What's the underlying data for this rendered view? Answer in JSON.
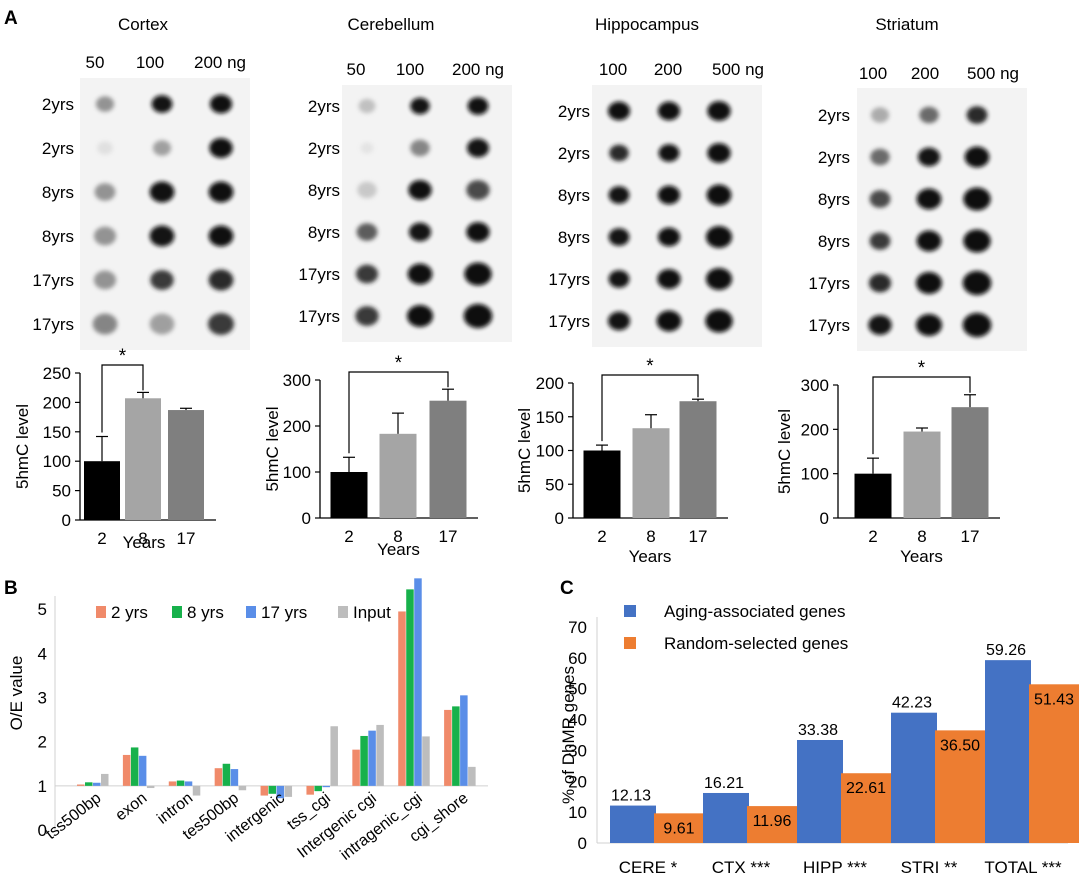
{
  "panel_labels": {
    "a": "A",
    "b": "B",
    "c": "C"
  },
  "blots": [
    {
      "title": "Cortex",
      "header": {
        "c1": "50",
        "c2": "100",
        "c3": "200 ng"
      },
      "rows": [
        {
          "label": "2yrs",
          "intensity": [
            0.55,
            0.95,
            0.98
          ],
          "spread": [
            0.7,
            0.8,
            0.85
          ]
        },
        {
          "label": "2yrs",
          "intensity": [
            0.15,
            0.5,
            0.98
          ],
          "spread": [
            0.6,
            0.7,
            0.9
          ]
        },
        {
          "label": "8yrs",
          "intensity": [
            0.55,
            0.97,
            0.98
          ],
          "spread": [
            0.8,
            0.95,
            0.95
          ]
        },
        {
          "label": "8yrs",
          "intensity": [
            0.55,
            0.95,
            0.98
          ],
          "spread": [
            0.85,
            0.95,
            0.95
          ]
        },
        {
          "label": "17yrs",
          "intensity": [
            0.55,
            0.85,
            0.9
          ],
          "spread": [
            0.85,
            0.9,
            0.95
          ]
        },
        {
          "label": "17yrs",
          "intensity": [
            0.6,
            0.5,
            0.85
          ],
          "spread": [
            0.95,
            0.95,
            1.0
          ]
        }
      ]
    },
    {
      "title": "Cerebellum",
      "header": {
        "c1": "50",
        "c2": "100",
        "c3": "200 ng"
      },
      "rows": [
        {
          "label": "2yrs",
          "intensity": [
            0.35,
            0.95,
            0.97
          ],
          "spread": [
            0.65,
            0.75,
            0.8
          ]
        },
        {
          "label": "2yrs",
          "intensity": [
            0.12,
            0.6,
            0.95
          ],
          "spread": [
            0.5,
            0.75,
            0.85
          ]
        },
        {
          "label": "8yrs",
          "intensity": [
            0.3,
            0.98,
            0.8
          ],
          "spread": [
            0.75,
            0.9,
            0.9
          ]
        },
        {
          "label": "8yrs",
          "intensity": [
            0.75,
            0.95,
            0.98
          ],
          "spread": [
            0.8,
            0.85,
            0.9
          ]
        },
        {
          "label": "17yrs",
          "intensity": [
            0.85,
            0.98,
            0.99
          ],
          "spread": [
            0.85,
            0.95,
            1.05
          ]
        },
        {
          "label": "17yrs",
          "intensity": [
            0.85,
            0.99,
            0.99
          ],
          "spread": [
            0.9,
            1.0,
            1.1
          ]
        }
      ]
    },
    {
      "title": "Hippocampus",
      "header": {
        "c1": "100",
        "c2": "200",
        "c3": "500 ng"
      },
      "rows": [
        {
          "label": "2yrs",
          "intensity": [
            0.98,
            0.98,
            0.98
          ],
          "spread": [
            0.85,
            0.85,
            0.9
          ]
        },
        {
          "label": "2yrs",
          "intensity": [
            0.9,
            0.97,
            0.98
          ],
          "spread": [
            0.75,
            0.8,
            0.9
          ]
        },
        {
          "label": "8yrs",
          "intensity": [
            0.95,
            0.98,
            0.99
          ],
          "spread": [
            0.8,
            0.85,
            0.95
          ]
        },
        {
          "label": "8yrs",
          "intensity": [
            0.95,
            0.98,
            0.99
          ],
          "spread": [
            0.8,
            0.85,
            1.0
          ]
        },
        {
          "label": "17yrs",
          "intensity": [
            0.95,
            0.98,
            0.99
          ],
          "spread": [
            0.8,
            0.9,
            1.0
          ]
        },
        {
          "label": "17yrs",
          "intensity": [
            0.96,
            0.99,
            0.99
          ],
          "spread": [
            0.85,
            0.95,
            1.05
          ]
        }
      ]
    },
    {
      "title": "Striatum",
      "header": {
        "c1": "100",
        "c2": "200",
        "c3": "500 ng"
      },
      "rows": [
        {
          "label": "2yrs",
          "intensity": [
            0.45,
            0.7,
            0.9
          ],
          "spread": [
            0.7,
            0.75,
            0.8
          ]
        },
        {
          "label": "2yrs",
          "intensity": [
            0.7,
            0.95,
            0.98
          ],
          "spread": [
            0.75,
            0.85,
            0.95
          ]
        },
        {
          "label": "8yrs",
          "intensity": [
            0.8,
            0.98,
            0.99
          ],
          "spread": [
            0.8,
            0.95,
            1.05
          ]
        },
        {
          "label": "8yrs",
          "intensity": [
            0.85,
            0.98,
            0.99
          ],
          "spread": [
            0.8,
            0.95,
            1.05
          ]
        },
        {
          "label": "17yrs",
          "intensity": [
            0.9,
            0.99,
            0.99
          ],
          "spread": [
            0.85,
            1.0,
            1.1
          ]
        },
        {
          "label": "17yrs",
          "intensity": [
            0.95,
            0.99,
            0.99
          ],
          "spread": [
            0.9,
            1.0,
            1.1
          ]
        }
      ]
    }
  ],
  "chart_data": [
    {
      "id": "cortex",
      "type": "bar",
      "ylabel": "5hmC level",
      "xlabel": "Years",
      "categories": [
        "2",
        "8",
        "17"
      ],
      "values": [
        100,
        207,
        187
      ],
      "errors": [
        42,
        10,
        3
      ],
      "ylim": [
        0,
        250
      ],
      "yticks": [
        0,
        50,
        100,
        150,
        200,
        250
      ],
      "significance": {
        "from": 0,
        "to": 1,
        "label": "*"
      },
      "colors": [
        "#000000",
        "#a5a5a5",
        "#7f7f7f"
      ]
    },
    {
      "id": "cerebellum",
      "type": "bar",
      "ylabel": "5hmC level",
      "xlabel": "Years",
      "categories": [
        "2",
        "8",
        "17"
      ],
      "values": [
        100,
        183,
        255
      ],
      "errors": [
        32,
        45,
        25
      ],
      "ylim": [
        0,
        300
      ],
      "yticks": [
        0,
        100,
        200,
        300
      ],
      "significance": {
        "from": 0,
        "to": 2,
        "label": "*"
      },
      "colors": [
        "#000000",
        "#a5a5a5",
        "#7f7f7f"
      ]
    },
    {
      "id": "hippocampus",
      "type": "bar",
      "ylabel": "5hmC level",
      "xlabel": "Years",
      "categories": [
        "2",
        "8",
        "17"
      ],
      "values": [
        100,
        133,
        173
      ],
      "errors": [
        8,
        20,
        3
      ],
      "ylim": [
        0,
        200
      ],
      "yticks": [
        0,
        50,
        100,
        150,
        200
      ],
      "significance": {
        "from": 0,
        "to": 2,
        "label": "*"
      },
      "colors": [
        "#000000",
        "#a5a5a5",
        "#7f7f7f"
      ]
    },
    {
      "id": "striatum",
      "type": "bar",
      "ylabel": "5hmC level",
      "xlabel": "Years",
      "categories": [
        "2",
        "8",
        "17"
      ],
      "values": [
        100,
        195,
        250
      ],
      "errors": [
        35,
        8,
        28
      ],
      "ylim": [
        0,
        300
      ],
      "yticks": [
        0,
        100,
        200,
        300
      ],
      "significance": {
        "from": 0,
        "to": 2,
        "label": "*"
      },
      "colors": [
        "#000000",
        "#a5a5a5",
        "#7f7f7f"
      ]
    },
    {
      "id": "oe",
      "type": "bar",
      "ylabel": "O/E value",
      "xlabel": "",
      "categories": [
        "tss500bp",
        "exon",
        "intron",
        "tes500bp",
        "intergenic",
        "tss_cgi",
        "Intergenic cgi",
        "intragenic_cgi",
        "cgi_shore"
      ],
      "baseline": 1,
      "ylim": [
        0,
        5.3
      ],
      "yticks": [
        0,
        1,
        2,
        3,
        4,
        5
      ],
      "series": [
        {
          "name": "2 yrs",
          "color": "#f08a6a",
          "values": [
            1.03,
            1.7,
            1.1,
            1.4,
            0.78,
            0.8,
            1.82,
            4.95,
            2.72
          ]
        },
        {
          "name": "8 yrs",
          "color": "#17b14b",
          "values": [
            1.08,
            1.87,
            1.12,
            1.5,
            0.82,
            0.88,
            2.13,
            5.45,
            2.8
          ]
        },
        {
          "name": "17 yrs",
          "color": "#5a8ee8",
          "values": [
            1.07,
            1.68,
            1.1,
            1.38,
            0.72,
            0.97,
            2.25,
            5.7,
            3.05
          ]
        },
        {
          "name": "Input",
          "color": "#bdbdbd",
          "values": [
            1.27,
            0.95,
            0.78,
            0.9,
            0.75,
            2.35,
            2.38,
            2.12,
            1.43
          ]
        }
      ]
    },
    {
      "id": "dhmr",
      "type": "bar",
      "ylabel": "% of DhMR genes",
      "xlabel": "",
      "categories": [
        "CERE *",
        "CTX ***",
        "HIPP ***",
        "STRI **",
        "TOTAL ***"
      ],
      "ylim": [
        0,
        70
      ],
      "yticks": [
        0,
        10,
        20,
        30,
        40,
        50,
        60,
        70
      ],
      "series": [
        {
          "name": "Aging-associated genes",
          "color": "#4472c4",
          "values": [
            12.13,
            16.21,
            33.38,
            42.23,
            59.26
          ],
          "labels": [
            "12.13",
            "16.21",
            "33.38",
            "42.23",
            "59.26"
          ]
        },
        {
          "name": "Random-selected genes",
          "color": "#ed7d31",
          "values": [
            9.61,
            11.96,
            22.61,
            36.5,
            51.43
          ],
          "labels": [
            "9.61",
            "11.96",
            "22.61",
            "36.50",
            "51.43"
          ]
        }
      ]
    }
  ]
}
